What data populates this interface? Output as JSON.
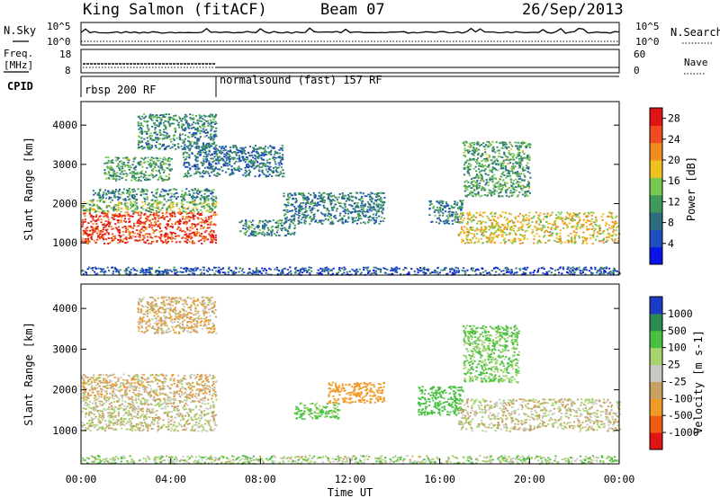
{
  "header": {
    "station": "King Salmon (fitACF)",
    "beam": "Beam 07",
    "date": "26/Sep/2013"
  },
  "noise_panel": {
    "left_label": "N.Sky",
    "right_label": "N.Search",
    "left_ticks": [
      "10^5",
      "10^0"
    ],
    "right_ticks": [
      "10^5",
      "10^0"
    ]
  },
  "freq_panel": {
    "left_label_line1": "Freq.",
    "left_label_line2": "[MHz]",
    "right_label": "Nave",
    "left_ticks": [
      "18",
      "8"
    ],
    "right_ticks": [
      "60",
      "0"
    ]
  },
  "cpid_panel": {
    "label": "CPID",
    "segments": [
      {
        "label": "rbsp 200 RF",
        "start_hour": 0,
        "end_hour": 6
      },
      {
        "label": "normalsound (fast) 157 RF",
        "start_hour": 6,
        "end_hour": 24
      }
    ]
  },
  "colors": {
    "power": [
      "#0a14e6",
      "#1f4fbf",
      "#2b6f7f",
      "#3f9a5a",
      "#78c850",
      "#f0c020",
      "#f08c1e",
      "#f04a1e",
      "#e01414"
    ],
    "velocity": [
      "#e01414",
      "#f05a14",
      "#f09a28",
      "#c8a060",
      "#c8c8c4",
      "#a8d470",
      "#48c040",
      "#2c8a52",
      "#1c3cc8"
    ]
  },
  "chart_data": [
    {
      "type": "heatmap",
      "name": "power",
      "xlabel": "",
      "ylabel": "Slant Range [km]",
      "xlim": [
        0,
        24
      ],
      "ylim": [
        180,
        4600
      ],
      "yticks": [
        "1000",
        "2000",
        "3000",
        "4000"
      ],
      "colorbar_label": "Power [dB]",
      "colorbar_ticks": [
        "4",
        "8",
        "12",
        "16",
        "20",
        "24",
        "28"
      ],
      "colorbar_range": [
        0,
        30
      ],
      "regions": [
        {
          "t0": 0.0,
          "t1": 6.0,
          "r0": 1000,
          "r1": 1800,
          "v": 26
        },
        {
          "t0": 0.0,
          "t1": 6.0,
          "r0": 1800,
          "r1": 2100,
          "v": 14
        },
        {
          "t0": 0.5,
          "t1": 6.0,
          "r0": 2100,
          "r1": 2400,
          "v": 10
        },
        {
          "t0": 1.0,
          "t1": 4.0,
          "r0": 2600,
          "r1": 3200,
          "v": 12
        },
        {
          "t0": 2.5,
          "t1": 6.0,
          "r0": 3400,
          "r1": 4300,
          "v": 10
        },
        {
          "t0": 4.5,
          "t1": 9.0,
          "r0": 2700,
          "r1": 3500,
          "v": 8
        },
        {
          "t0": 7.0,
          "t1": 9.5,
          "r0": 1200,
          "r1": 1600,
          "v": 10
        },
        {
          "t0": 9.0,
          "t1": 13.5,
          "r0": 1500,
          "r1": 2300,
          "v": 9
        },
        {
          "t0": 15.5,
          "t1": 17.0,
          "r0": 1500,
          "r1": 2100,
          "v": 9
        },
        {
          "t0": 16.8,
          "t1": 24.0,
          "r0": 1000,
          "r1": 1800,
          "v": 18
        },
        {
          "t0": 17.0,
          "t1": 20.0,
          "r0": 2200,
          "r1": 3600,
          "v": 12
        },
        {
          "t0": 0.0,
          "t1": 24.0,
          "r0": 200,
          "r1": 400,
          "v": 6
        }
      ]
    },
    {
      "type": "heatmap",
      "name": "velocity",
      "xlabel": "Time UT",
      "ylabel": "Slant Range [km]",
      "xlim": [
        0,
        24
      ],
      "ylim": [
        180,
        4600
      ],
      "xticks": [
        "00:00",
        "04:00",
        "08:00",
        "12:00",
        "16:00",
        "20:00",
        "00:00"
      ],
      "yticks": [
        "1000",
        "2000",
        "3000",
        "4000"
      ],
      "colorbar_label": "Velocity [m s-1]",
      "colorbar_ticks": [
        "1000",
        "500",
        "100",
        "25",
        "-25",
        "-100",
        "-500",
        "-1000"
      ],
      "regions": [
        {
          "t0": 0.0,
          "t1": 6.0,
          "r0": 1000,
          "r1": 1800,
          "v": 0
        },
        {
          "t0": 0.0,
          "t1": 6.0,
          "r0": 1800,
          "r1": 2400,
          "v": -50
        },
        {
          "t0": 2.5,
          "t1": 6.0,
          "r0": 3400,
          "r1": 4300,
          "v": -60
        },
        {
          "t0": 9.5,
          "t1": 11.5,
          "r0": 1300,
          "r1": 1700,
          "v": 150
        },
        {
          "t0": 11.0,
          "t1": 13.5,
          "r0": 1700,
          "r1": 2200,
          "v": -200
        },
        {
          "t0": 15.0,
          "t1": 17.0,
          "r0": 1400,
          "r1": 2100,
          "v": 200
        },
        {
          "t0": 16.8,
          "t1": 24.0,
          "r0": 1000,
          "r1": 1800,
          "v": 0
        },
        {
          "t0": 17.0,
          "t1": 19.5,
          "r0": 2200,
          "r1": 3600,
          "v": 120
        },
        {
          "t0": 0.0,
          "t1": 24.0,
          "r0": 200,
          "r1": 400,
          "v": 60
        }
      ]
    }
  ]
}
